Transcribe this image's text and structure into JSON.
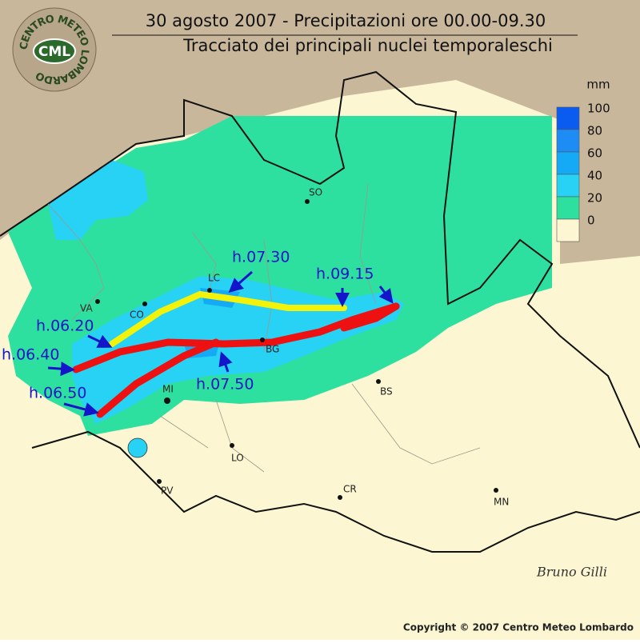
{
  "header": {
    "title": "30 agosto 2007 - Precipitazioni ore 00.00-09.30",
    "subtitle": "Tracciato dei principali nuclei temporaleschi",
    "logo_ring": "CENTRO METEO LOMBARDO",
    "logo": "CML"
  },
  "legend": {
    "unit": "mm",
    "levels": [
      {
        "value": 100,
        "color": "#0a5cf0"
      },
      {
        "value": 80,
        "color": "#1e8cf5"
      },
      {
        "value": 60,
        "color": "#14aaf5"
      },
      {
        "value": 40,
        "color": "#28d2f5"
      },
      {
        "value": 20,
        "color": "#2ee0a0"
      },
      {
        "value": 0,
        "color": "#fcf7d2"
      }
    ]
  },
  "cities": [
    "SO",
    "LC",
    "VA",
    "CO",
    "BG",
    "BS",
    "MI",
    "LO",
    "PV",
    "CR",
    "MN"
  ],
  "times": [
    "h.07.30",
    "h.09.15",
    "h.06.20",
    "h.06.40",
    "h.07.50",
    "h.06.50"
  ],
  "footer": {
    "signature": "Bruno Gilli",
    "copyright": "Copyright © 2007 Centro Meteo Lombardo"
  }
}
